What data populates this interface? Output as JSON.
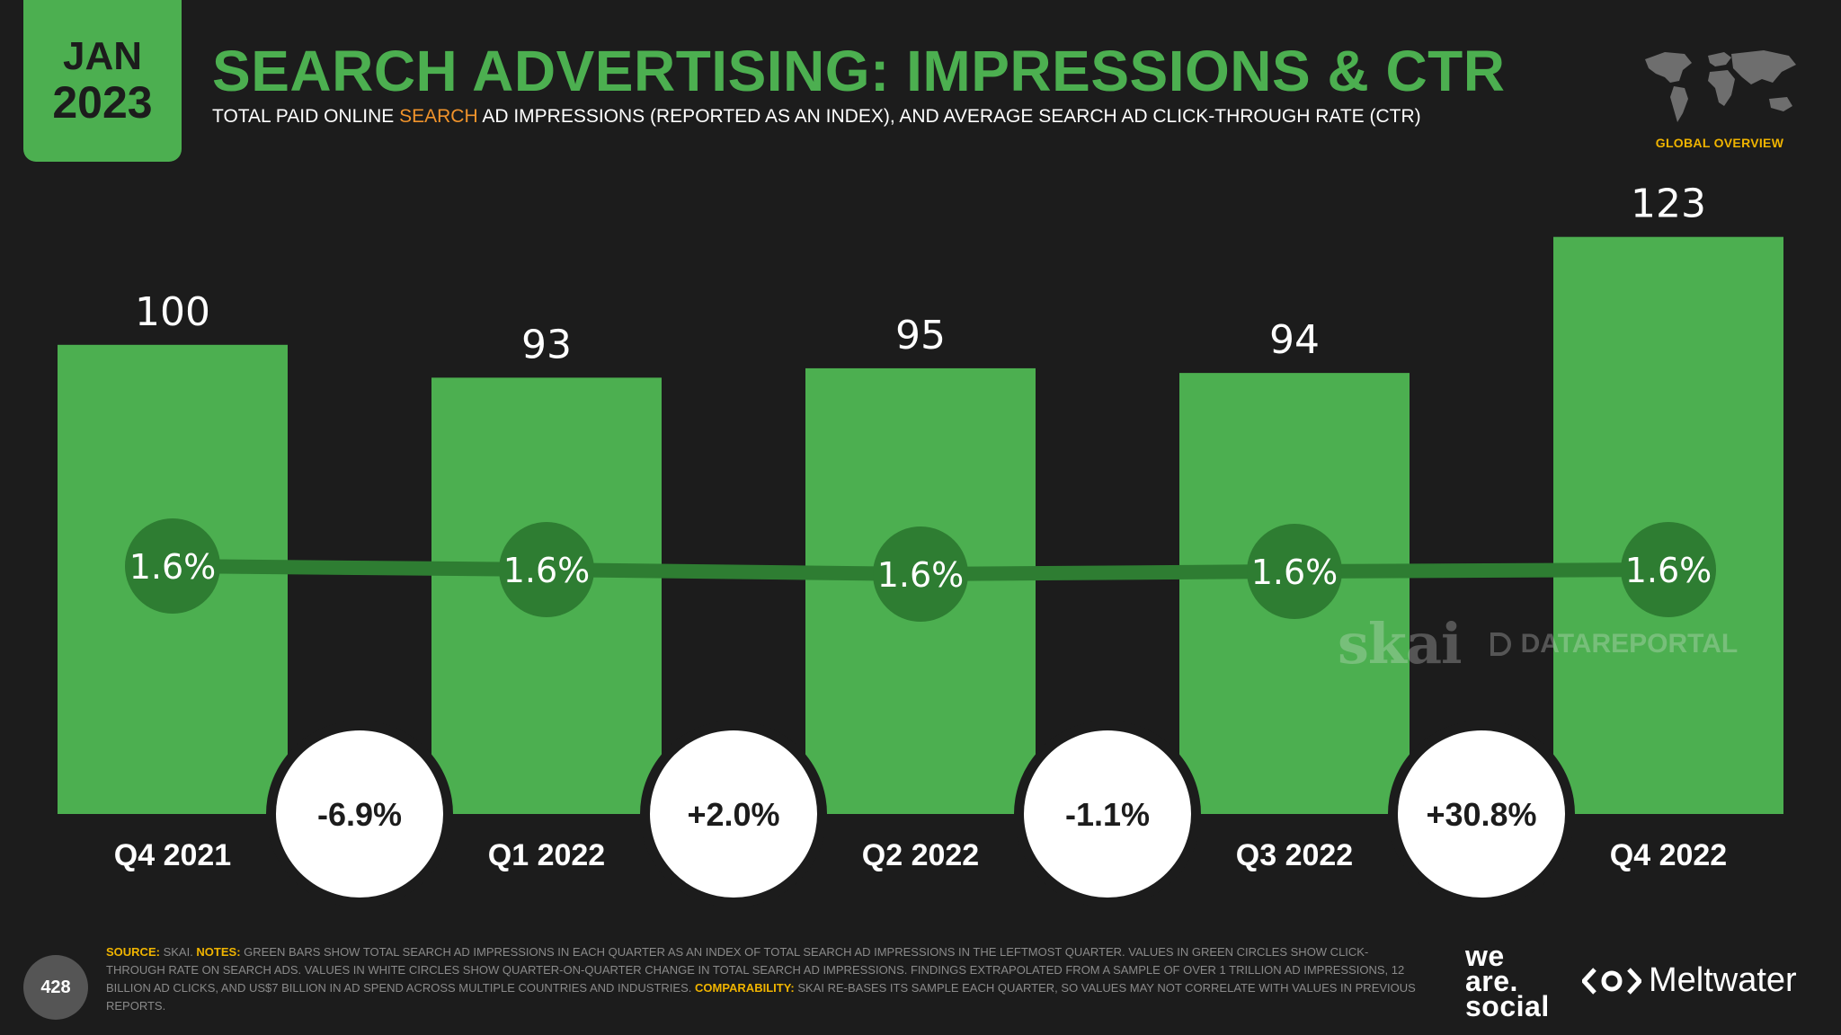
{
  "header": {
    "month": "JAN",
    "year": "2023",
    "title": "SEARCH ADVERTISING: IMPRESSIONS & CTR",
    "subtitle_pre": "TOTAL PAID ONLINE ",
    "subtitle_highlight": "SEARCH",
    "subtitle_post": " AD IMPRESSIONS (REPORTED AS AN INDEX), AND AVERAGE SEARCH AD CLICK-THROUGH RATE (CTR)",
    "overview_label": "GLOBAL OVERVIEW",
    "map_icon": "world-map-icon"
  },
  "colors": {
    "background": "#1c1c1c",
    "bar": "#4caf50",
    "ctr_circle": "#2e7d32",
    "change_circle": "#ffffff",
    "accent_orange": "#f0932b",
    "accent_yellow": "#f0b400"
  },
  "chart_data": {
    "type": "bar",
    "title": "SEARCH ADVERTISING: IMPRESSIONS & CTR",
    "categories": [
      "Q4 2021",
      "Q1 2022",
      "Q2 2022",
      "Q3 2022",
      "Q4 2022"
    ],
    "series": [
      {
        "values": [
          100,
          93,
          95,
          94,
          123
        ]
      },
      {
        "values": [
          1.6,
          1.6,
          1.6,
          1.6,
          1.6
        ]
      }
    ],
    "bar_labels": [
      "100",
      "93",
      "95",
      "94",
      "123"
    ],
    "ctr_labels": [
      "1.6%",
      "1.6%",
      "1.6%",
      "1.6%",
      "1.6%"
    ],
    "qoq_change_labels": [
      "-6.9%",
      "+2.0%",
      "-1.1%",
      "+30.8%"
    ],
    "ylim": [
      0,
      140
    ],
    "grid": false
  },
  "watermark": {
    "brand1": "skai",
    "brand2": "DATAREPORTAL"
  },
  "footer": {
    "page_number": "428",
    "source_label": "SOURCE:",
    "source_text": " SKAI. ",
    "notes_label": "NOTES:",
    "notes_text": " GREEN BARS SHOW TOTAL SEARCH AD IMPRESSIONS IN EACH QUARTER AS AN INDEX OF TOTAL SEARCH AD IMPRESSIONS IN THE LEFTMOST QUARTER. VALUES IN GREEN CIRCLES SHOW CLICK-THROUGH RATE ON SEARCH ADS. VALUES IN WHITE CIRCLES SHOW QUARTER-ON-QUARTER CHANGE IN TOTAL SEARCH AD IMPRESSIONS. FINDINGS EXTRAPOLATED FROM A SAMPLE OF OVER 1 TRILLION AD IMPRESSIONS, 12 BILLION AD CLICKS, AND US$7 BILLION IN AD SPEND ACROSS MULTIPLE COUNTRIES AND INDUSTRIES. ",
    "comparability_label": "COMPARABILITY:",
    "comparability_text": " SKAI RE-BASES ITS SAMPLE EACH QUARTER, SO VALUES MAY NOT CORRELATE WITH VALUES IN PREVIOUS REPORTS.",
    "brand_we": "we",
    "brand_are": "are.",
    "brand_social": "social",
    "brand_meltwater": "Meltwater"
  }
}
